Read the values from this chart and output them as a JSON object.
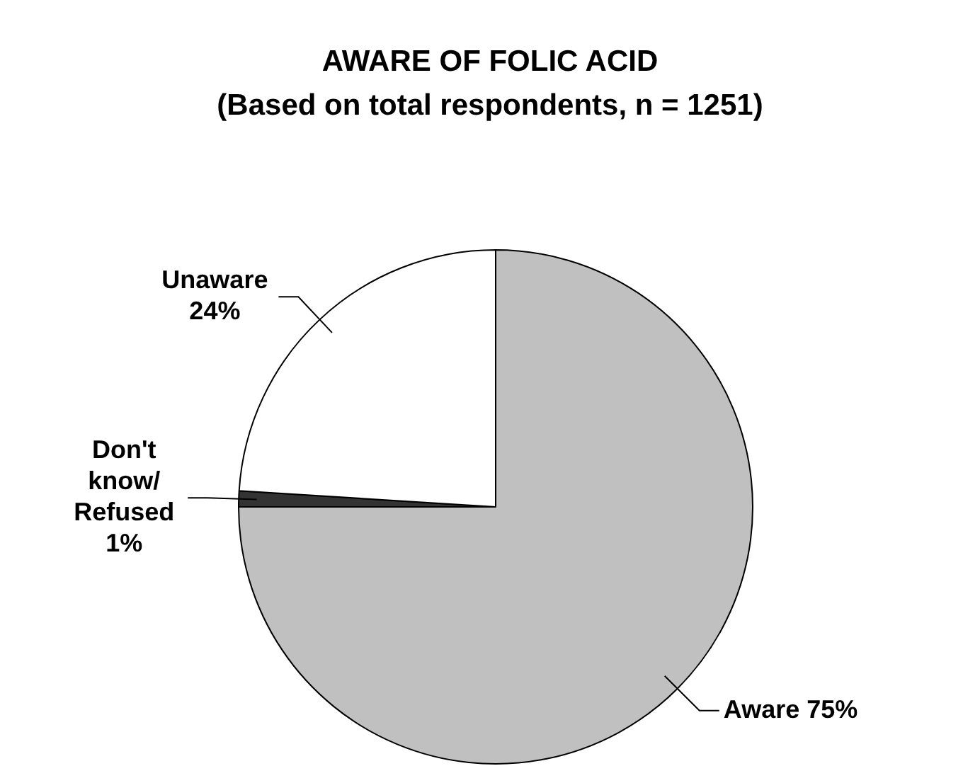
{
  "chart_data": {
    "type": "pie",
    "title": "AWARE OF FOLIC ACID",
    "subtitle": "(Based on total respondents, n = 1251)",
    "categories": [
      "Aware",
      "Don't know/ Refused",
      "Unaware"
    ],
    "values": [
      75,
      1,
      24
    ],
    "colors": [
      "#c0c0c0",
      "#333333",
      "#ffffff"
    ],
    "value_labels": [
      "75%",
      "1%",
      "24%"
    ],
    "legend": false
  }
}
